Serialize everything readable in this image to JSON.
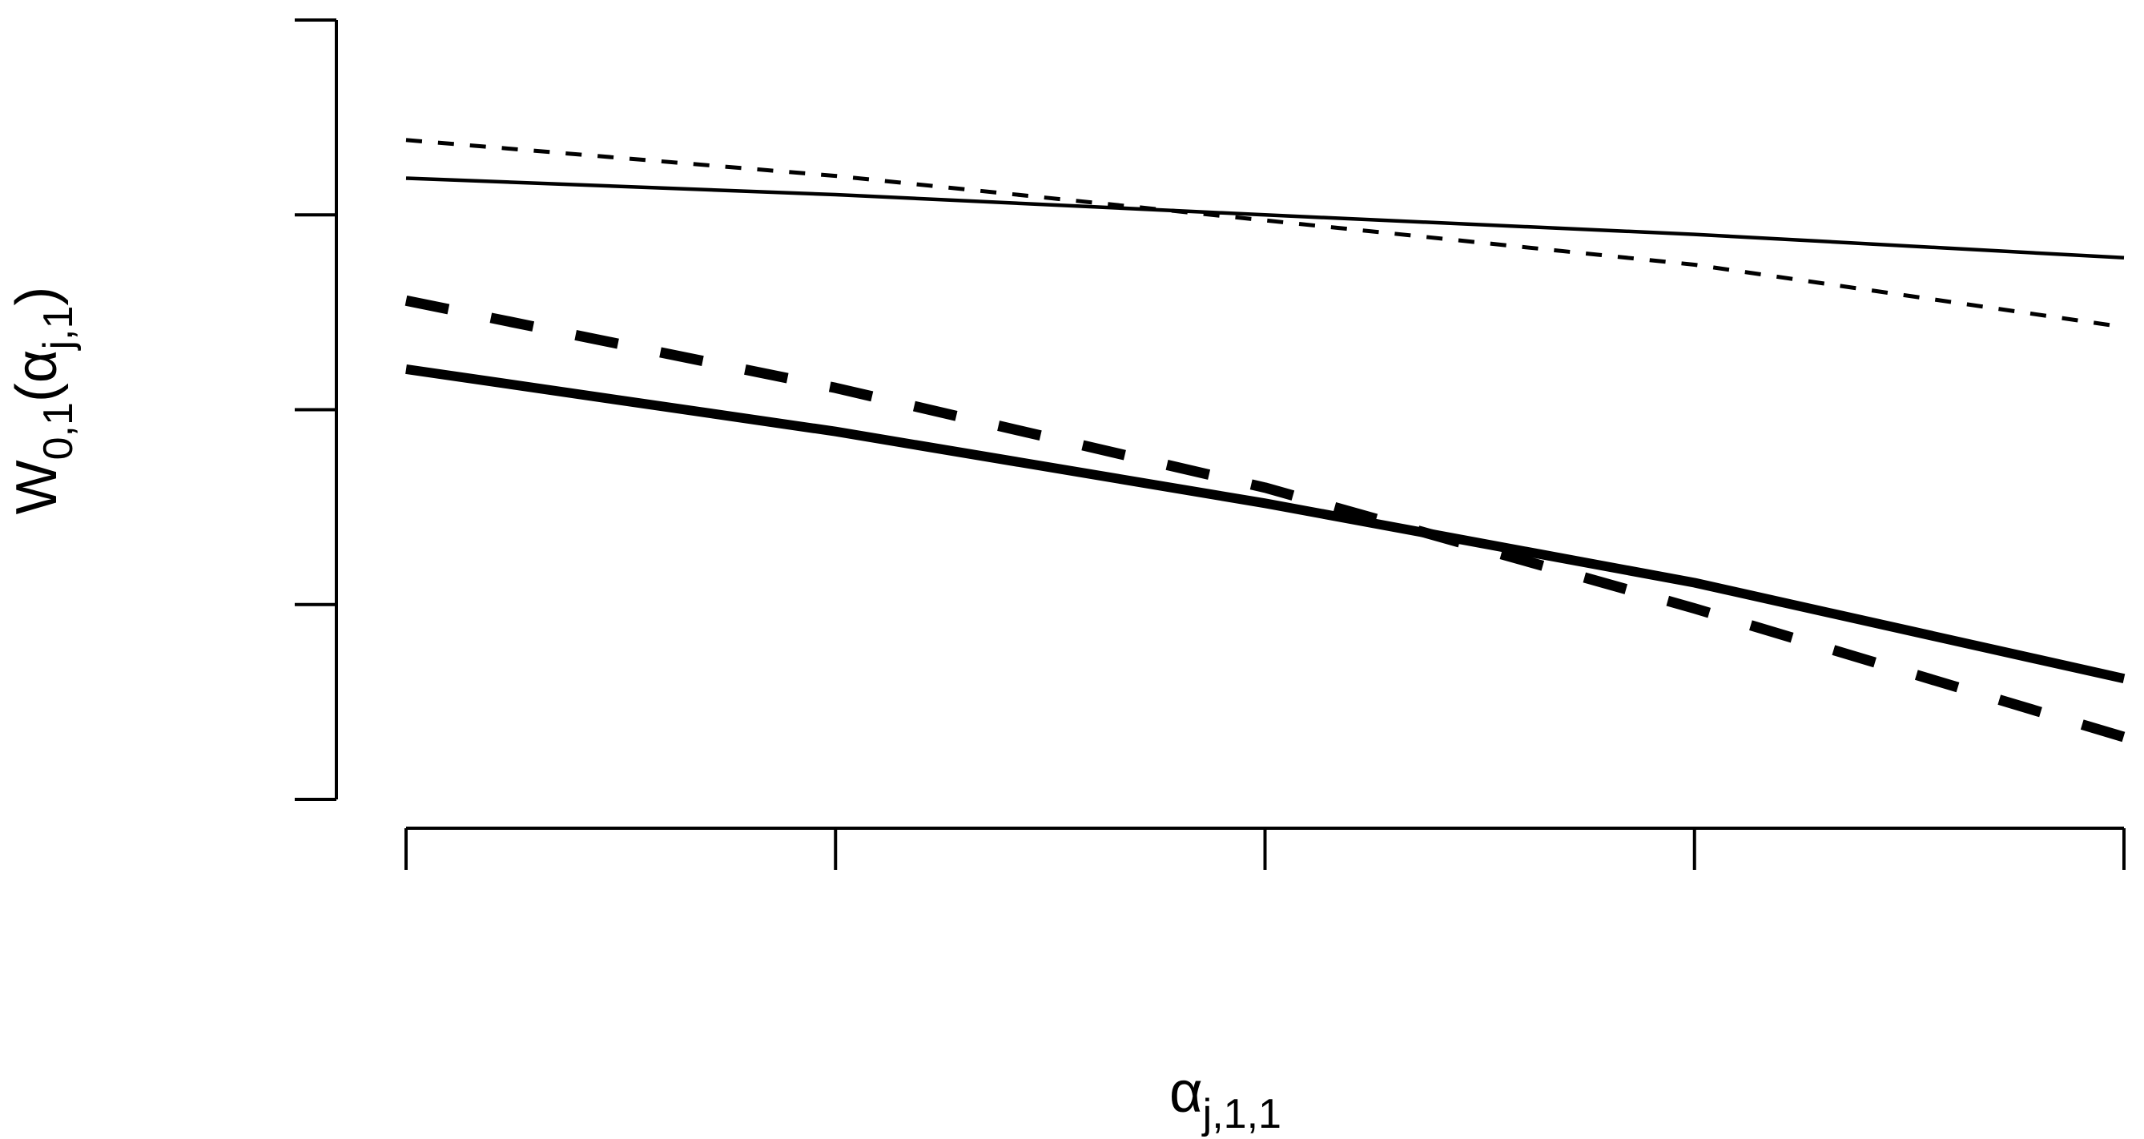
{
  "chart_data": {
    "type": "line",
    "title": "",
    "xlabel": {
      "base": "α",
      "sub": "j,1,1"
    },
    "ylabel": {
      "base": "W",
      "sub": "0,1",
      "open": "(",
      "arg_base": "α",
      "arg_sub": "j,1",
      "close": ")"
    },
    "x_ticks": [
      0,
      0.25,
      0.5,
      0.75,
      1
    ],
    "y_ticks": [
      0,
      0.25,
      0.5,
      0.75,
      1
    ],
    "xlim": [
      0,
      1
    ],
    "ylim": [
      0,
      1
    ],
    "tick_labels_shown": false,
    "grid": false,
    "legend": "none",
    "series": [
      {
        "line_style": "thin-solid",
        "x": [
          0,
          0.25,
          0.5,
          0.75,
          1
        ],
        "y": [
          0.797,
          0.776,
          0.75,
          0.725,
          0.695
        ]
      },
      {
        "line_style": "thin-dashed",
        "x": [
          0,
          0.25,
          0.5,
          0.75,
          1
        ],
        "y": [
          0.846,
          0.8,
          0.743,
          0.686,
          0.606
        ]
      },
      {
        "line_style": "thick-solid",
        "x": [
          0,
          0.25,
          0.5,
          0.75,
          1
        ],
        "y": [
          0.552,
          0.472,
          0.38,
          0.278,
          0.155
        ]
      },
      {
        "line_style": "thick-dashed",
        "x": [
          0,
          0.25,
          0.5,
          0.75,
          1
        ],
        "y": [
          0.64,
          0.528,
          0.4,
          0.245,
          0.08
        ]
      }
    ]
  }
}
